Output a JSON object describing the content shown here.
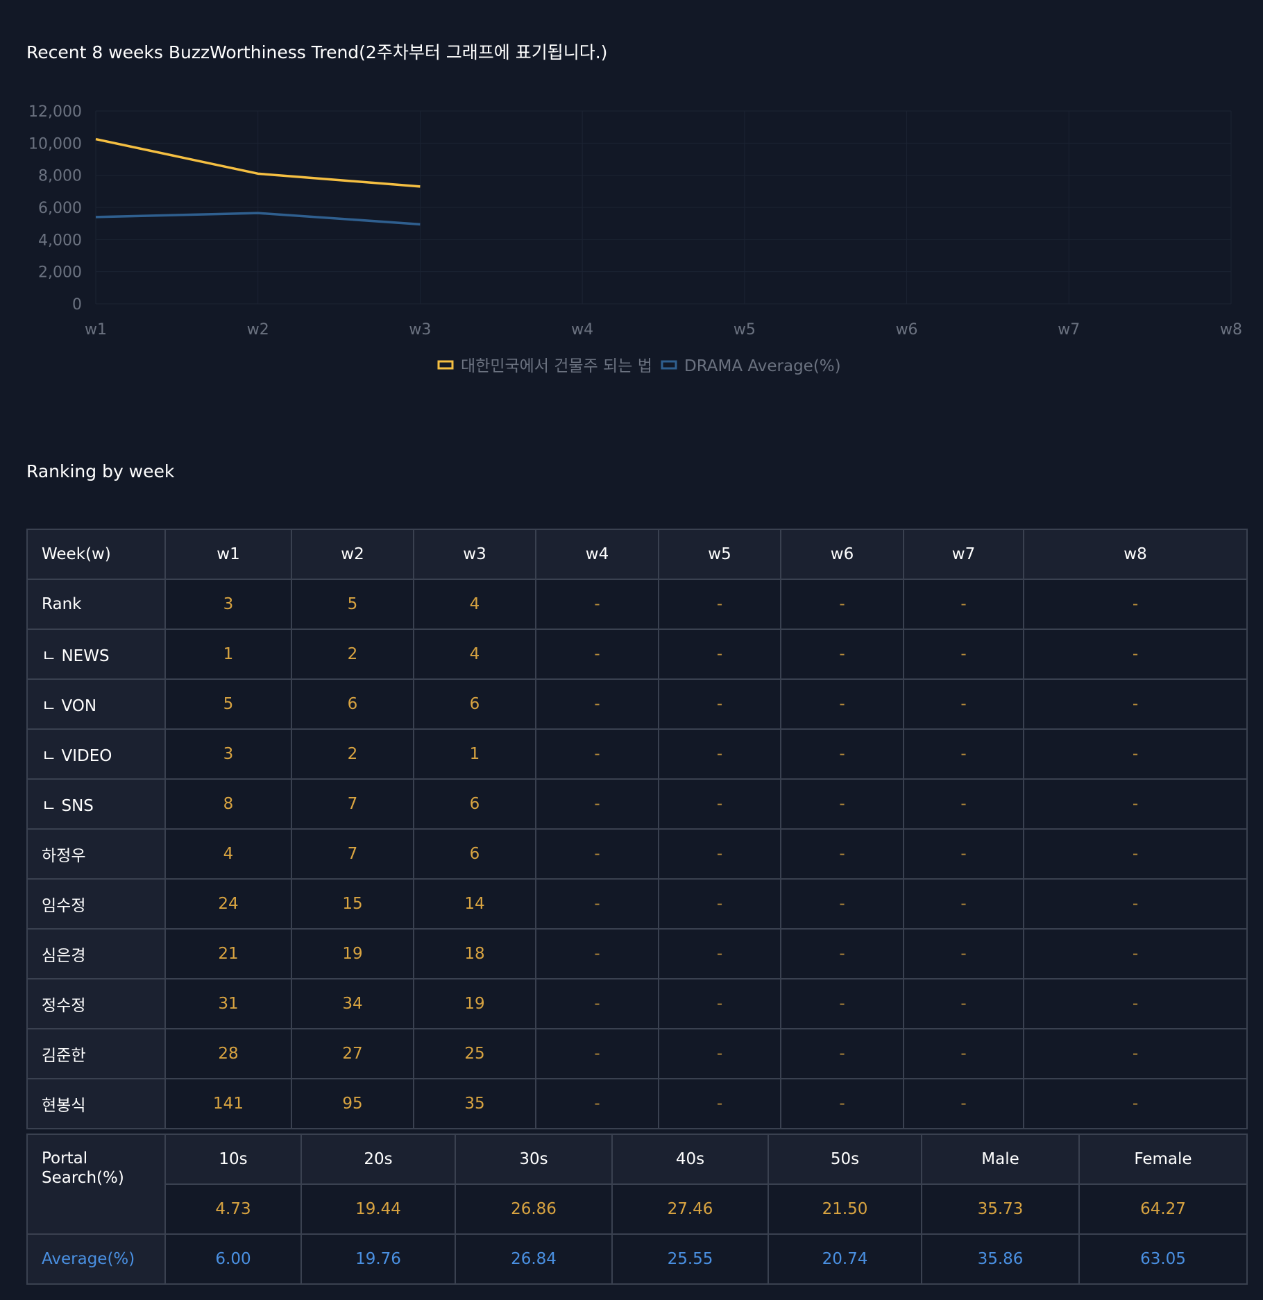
{
  "chart_section": {
    "title": "Recent 8 weeks BuzzWorthiness Trend(2주차부터 그래프에 표기됩니다.)"
  },
  "chart_data": {
    "type": "line",
    "title": "Recent 8 weeks BuzzWorthiness Trend(2주차부터 그래프에 표기됩니다.)",
    "x": [
      "w1",
      "w2",
      "w3",
      "w4",
      "w5",
      "w6",
      "w7",
      "w8"
    ],
    "ylim": [
      0,
      12000
    ],
    "yticks": [
      0,
      2000,
      4000,
      6000,
      8000,
      10000,
      12000
    ],
    "ytick_labels": [
      "0",
      "2,000",
      "4,000",
      "6,000",
      "8,000",
      "10,000",
      "12,000"
    ],
    "grid": true,
    "legend_position": "bottom",
    "series": [
      {
        "name": "대한민국에서 건물주 되는 법",
        "color": "#f5bf42",
        "values": [
          10250,
          8100,
          7300,
          null,
          null,
          null,
          null,
          null
        ]
      },
      {
        "name": "DRAMA Average(%)",
        "color": "#2f5f8f",
        "values": [
          5400,
          5650,
          4950,
          null,
          null,
          null,
          null,
          null
        ]
      }
    ]
  },
  "ranking": {
    "title": "Ranking by week",
    "header": [
      "Week(w)",
      "w1",
      "w2",
      "w3",
      "w4",
      "w5",
      "w6",
      "w7",
      "w8"
    ],
    "rows": [
      {
        "label": "Rank",
        "values": [
          "3",
          "5",
          "4",
          "-",
          "-",
          "-",
          "-",
          "-"
        ]
      },
      {
        "label": "ㄴ NEWS",
        "values": [
          "1",
          "2",
          "4",
          "-",
          "-",
          "-",
          "-",
          "-"
        ]
      },
      {
        "label": "ㄴ VON",
        "values": [
          "5",
          "6",
          "6",
          "-",
          "-",
          "-",
          "-",
          "-"
        ]
      },
      {
        "label": "ㄴ VIDEO",
        "values": [
          "3",
          "2",
          "1",
          "-",
          "-",
          "-",
          "-",
          "-"
        ]
      },
      {
        "label": "ㄴ SNS",
        "values": [
          "8",
          "7",
          "6",
          "-",
          "-",
          "-",
          "-",
          "-"
        ]
      },
      {
        "label": "하정우",
        "values": [
          "4",
          "7",
          "6",
          "-",
          "-",
          "-",
          "-",
          "-"
        ]
      },
      {
        "label": "임수정",
        "values": [
          "24",
          "15",
          "14",
          "-",
          "-",
          "-",
          "-",
          "-"
        ]
      },
      {
        "label": "심은경",
        "values": [
          "21",
          "19",
          "18",
          "-",
          "-",
          "-",
          "-",
          "-"
        ]
      },
      {
        "label": "정수정",
        "values": [
          "31",
          "34",
          "19",
          "-",
          "-",
          "-",
          "-",
          "-"
        ]
      },
      {
        "label": "김준한",
        "values": [
          "28",
          "27",
          "25",
          "-",
          "-",
          "-",
          "-",
          "-"
        ]
      },
      {
        "label": "현봉식",
        "values": [
          "141",
          "95",
          "35",
          "-",
          "-",
          "-",
          "-",
          "-"
        ]
      }
    ]
  },
  "portal_search": {
    "label": "Portal Search(%)",
    "header": [
      "10s",
      "20s",
      "30s",
      "40s",
      "50s",
      "Male",
      "Female"
    ],
    "values": [
      "4.73",
      "19.44",
      "26.86",
      "27.46",
      "21.50",
      "35.73",
      "64.27"
    ],
    "average_label": "Average(%)",
    "average": [
      "6.00",
      "19.76",
      "26.84",
      "25.55",
      "20.74",
      "35.86",
      "63.05"
    ]
  }
}
